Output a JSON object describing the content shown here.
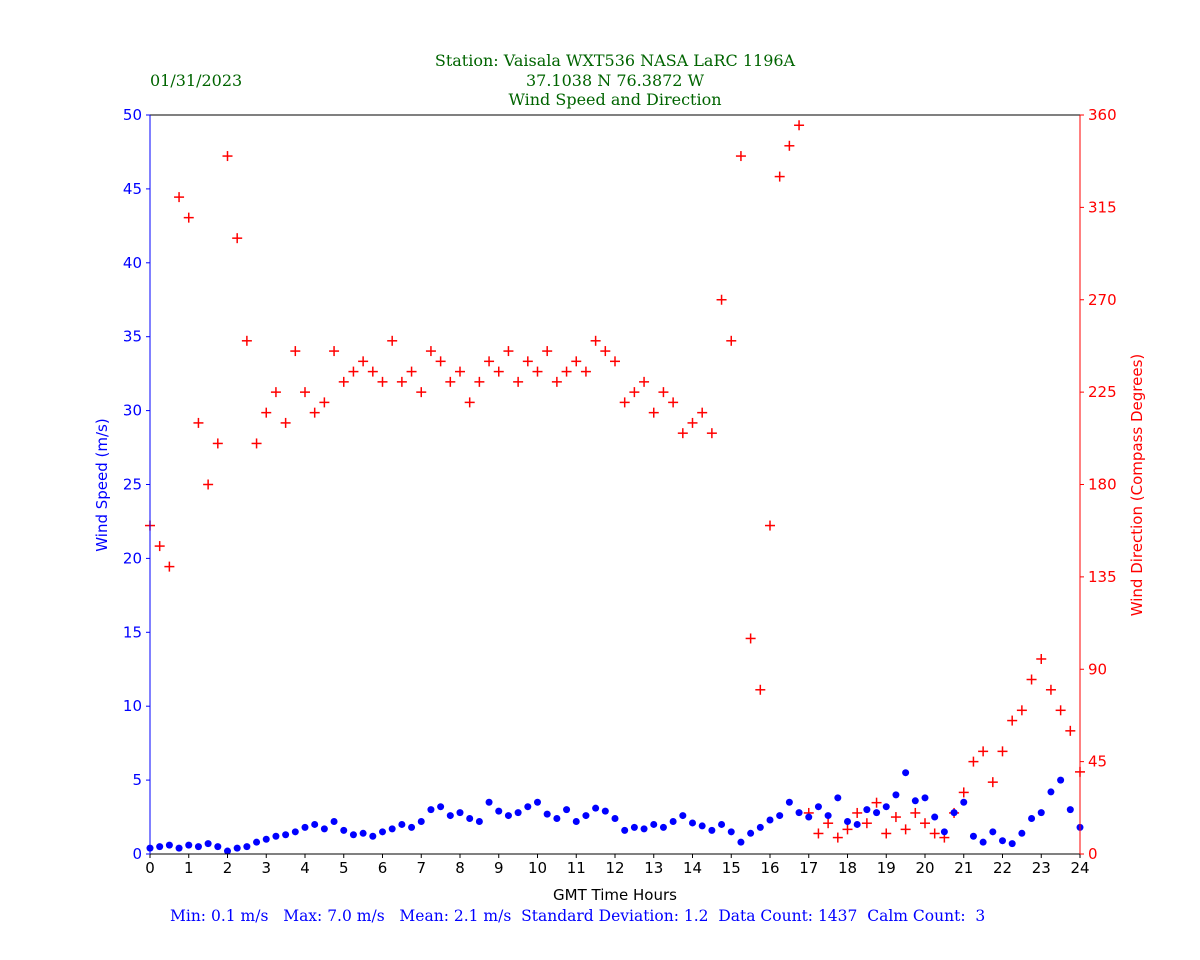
{
  "header": {
    "station": "Station:  Vaisala WXT536  NASA LaRC 1196A",
    "coords": "37.1038 N 76.3872 W",
    "subtitle": "Wind Speed and Direction",
    "date": "01/31/2023"
  },
  "stats": "Min: 0.1 m/s   Max: 7.0 m/s   Mean: 2.1 m/s  Standard Deviation: 1.2  Data Count: 1437  Calm Count:  3",
  "chart_data": {
    "type": "scatter",
    "title": "Wind Speed and Direction",
    "xlabel": "GMT Time Hours",
    "ylabel": "Wind Speed (m/s)",
    "y2label": "Wind Direction (Compass Degrees)",
    "xlim": [
      0,
      24
    ],
    "ylim": [
      0,
      50
    ],
    "y2lim": [
      0,
      360
    ],
    "xticks": [
      0,
      1,
      2,
      3,
      4,
      5,
      6,
      7,
      8,
      9,
      10,
      11,
      12,
      13,
      14,
      15,
      16,
      17,
      18,
      19,
      20,
      21,
      22,
      23,
      24
    ],
    "yticks": [
      0,
      5,
      10,
      15,
      20,
      25,
      30,
      35,
      40,
      45,
      50
    ],
    "y2ticks": [
      0,
      45,
      90,
      135,
      180,
      225,
      270,
      315,
      360
    ],
    "grid": false,
    "colors": {
      "speed": "#0000ff",
      "direction": "#ff0000",
      "title": "#006400"
    },
    "x": [
      0,
      0.25,
      0.5,
      0.75,
      1,
      1.25,
      1.5,
      1.75,
      2,
      2.25,
      2.5,
      2.75,
      3,
      3.25,
      3.5,
      3.75,
      4,
      4.25,
      4.5,
      4.75,
      5,
      5.25,
      5.5,
      5.75,
      6,
      6.25,
      6.5,
      6.75,
      7,
      7.25,
      7.5,
      7.75,
      8,
      8.25,
      8.5,
      8.75,
      9,
      9.25,
      9.5,
      9.75,
      10,
      10.25,
      10.5,
      10.75,
      11,
      11.25,
      11.5,
      11.75,
      12,
      12.25,
      12.5,
      12.75,
      13,
      13.25,
      13.5,
      13.75,
      14,
      14.25,
      14.5,
      14.75,
      15,
      15.25,
      15.5,
      15.75,
      16,
      16.25,
      16.5,
      16.75,
      17,
      17.25,
      17.5,
      17.75,
      18,
      18.25,
      18.5,
      18.75,
      19,
      19.25,
      19.5,
      19.75,
      20,
      20.25,
      20.5,
      20.75,
      21,
      21.25,
      21.5,
      21.75,
      22,
      22.25,
      22.5,
      22.75,
      23,
      23.25,
      23.5,
      23.75,
      24
    ],
    "series": [
      {
        "name": "Wind Speed (m/s)",
        "axis": "left",
        "marker": "dot",
        "values": [
          0.4,
          0.5,
          0.6,
          0.4,
          0.6,
          0.5,
          0.7,
          0.5,
          0.2,
          0.4,
          0.5,
          0.8,
          1.0,
          1.2,
          1.3,
          1.5,
          1.8,
          2.0,
          1.7,
          2.2,
          1.6,
          1.3,
          1.4,
          1.2,
          1.5,
          1.7,
          2.0,
          1.8,
          2.2,
          3.0,
          3.2,
          2.6,
          2.8,
          2.4,
          2.2,
          3.5,
          2.9,
          2.6,
          2.8,
          3.2,
          3.5,
          2.7,
          2.4,
          3.0,
          2.2,
          2.6,
          3.1,
          2.9,
          2.4,
          1.6,
          1.8,
          1.7,
          2.0,
          1.8,
          2.2,
          2.6,
          2.1,
          1.9,
          1.6,
          2.0,
          1.5,
          0.8,
          1.4,
          1.8,
          2.3,
          2.6,
          3.5,
          2.8,
          2.5,
          3.2,
          2.6,
          3.8,
          2.2,
          2.0,
          3.0,
          2.8,
          3.2,
          4.0,
          5.5,
          3.6,
          3.8,
          2.5,
          1.5,
          2.8,
          3.5,
          1.2,
          0.8,
          1.5,
          0.9,
          0.7,
          1.4,
          2.4,
          2.8,
          4.2,
          5.0,
          3.0,
          1.8
        ]
      },
      {
        "name": "Wind Direction (Compass Degrees)",
        "axis": "right",
        "marker": "plus",
        "values": [
          160,
          150,
          140,
          320,
          310,
          210,
          180,
          200,
          340,
          300,
          250,
          200,
          215,
          225,
          210,
          245,
          225,
          215,
          220,
          245,
          230,
          235,
          240,
          235,
          230,
          250,
          230,
          235,
          225,
          245,
          240,
          230,
          235,
          220,
          230,
          240,
          235,
          245,
          230,
          240,
          235,
          245,
          230,
          235,
          240,
          235,
          250,
          245,
          240,
          220,
          225,
          230,
          215,
          225,
          220,
          205,
          210,
          215,
          205,
          270,
          250,
          340,
          105,
          80,
          160,
          330,
          345,
          355,
          20,
          10,
          15,
          8,
          12,
          20,
          15,
          25,
          10,
          18,
          12,
          20,
          15,
          10,
          8,
          20,
          30,
          45,
          50,
          35,
          50,
          65,
          70,
          85,
          95,
          80,
          70,
          60,
          40
        ]
      }
    ]
  }
}
